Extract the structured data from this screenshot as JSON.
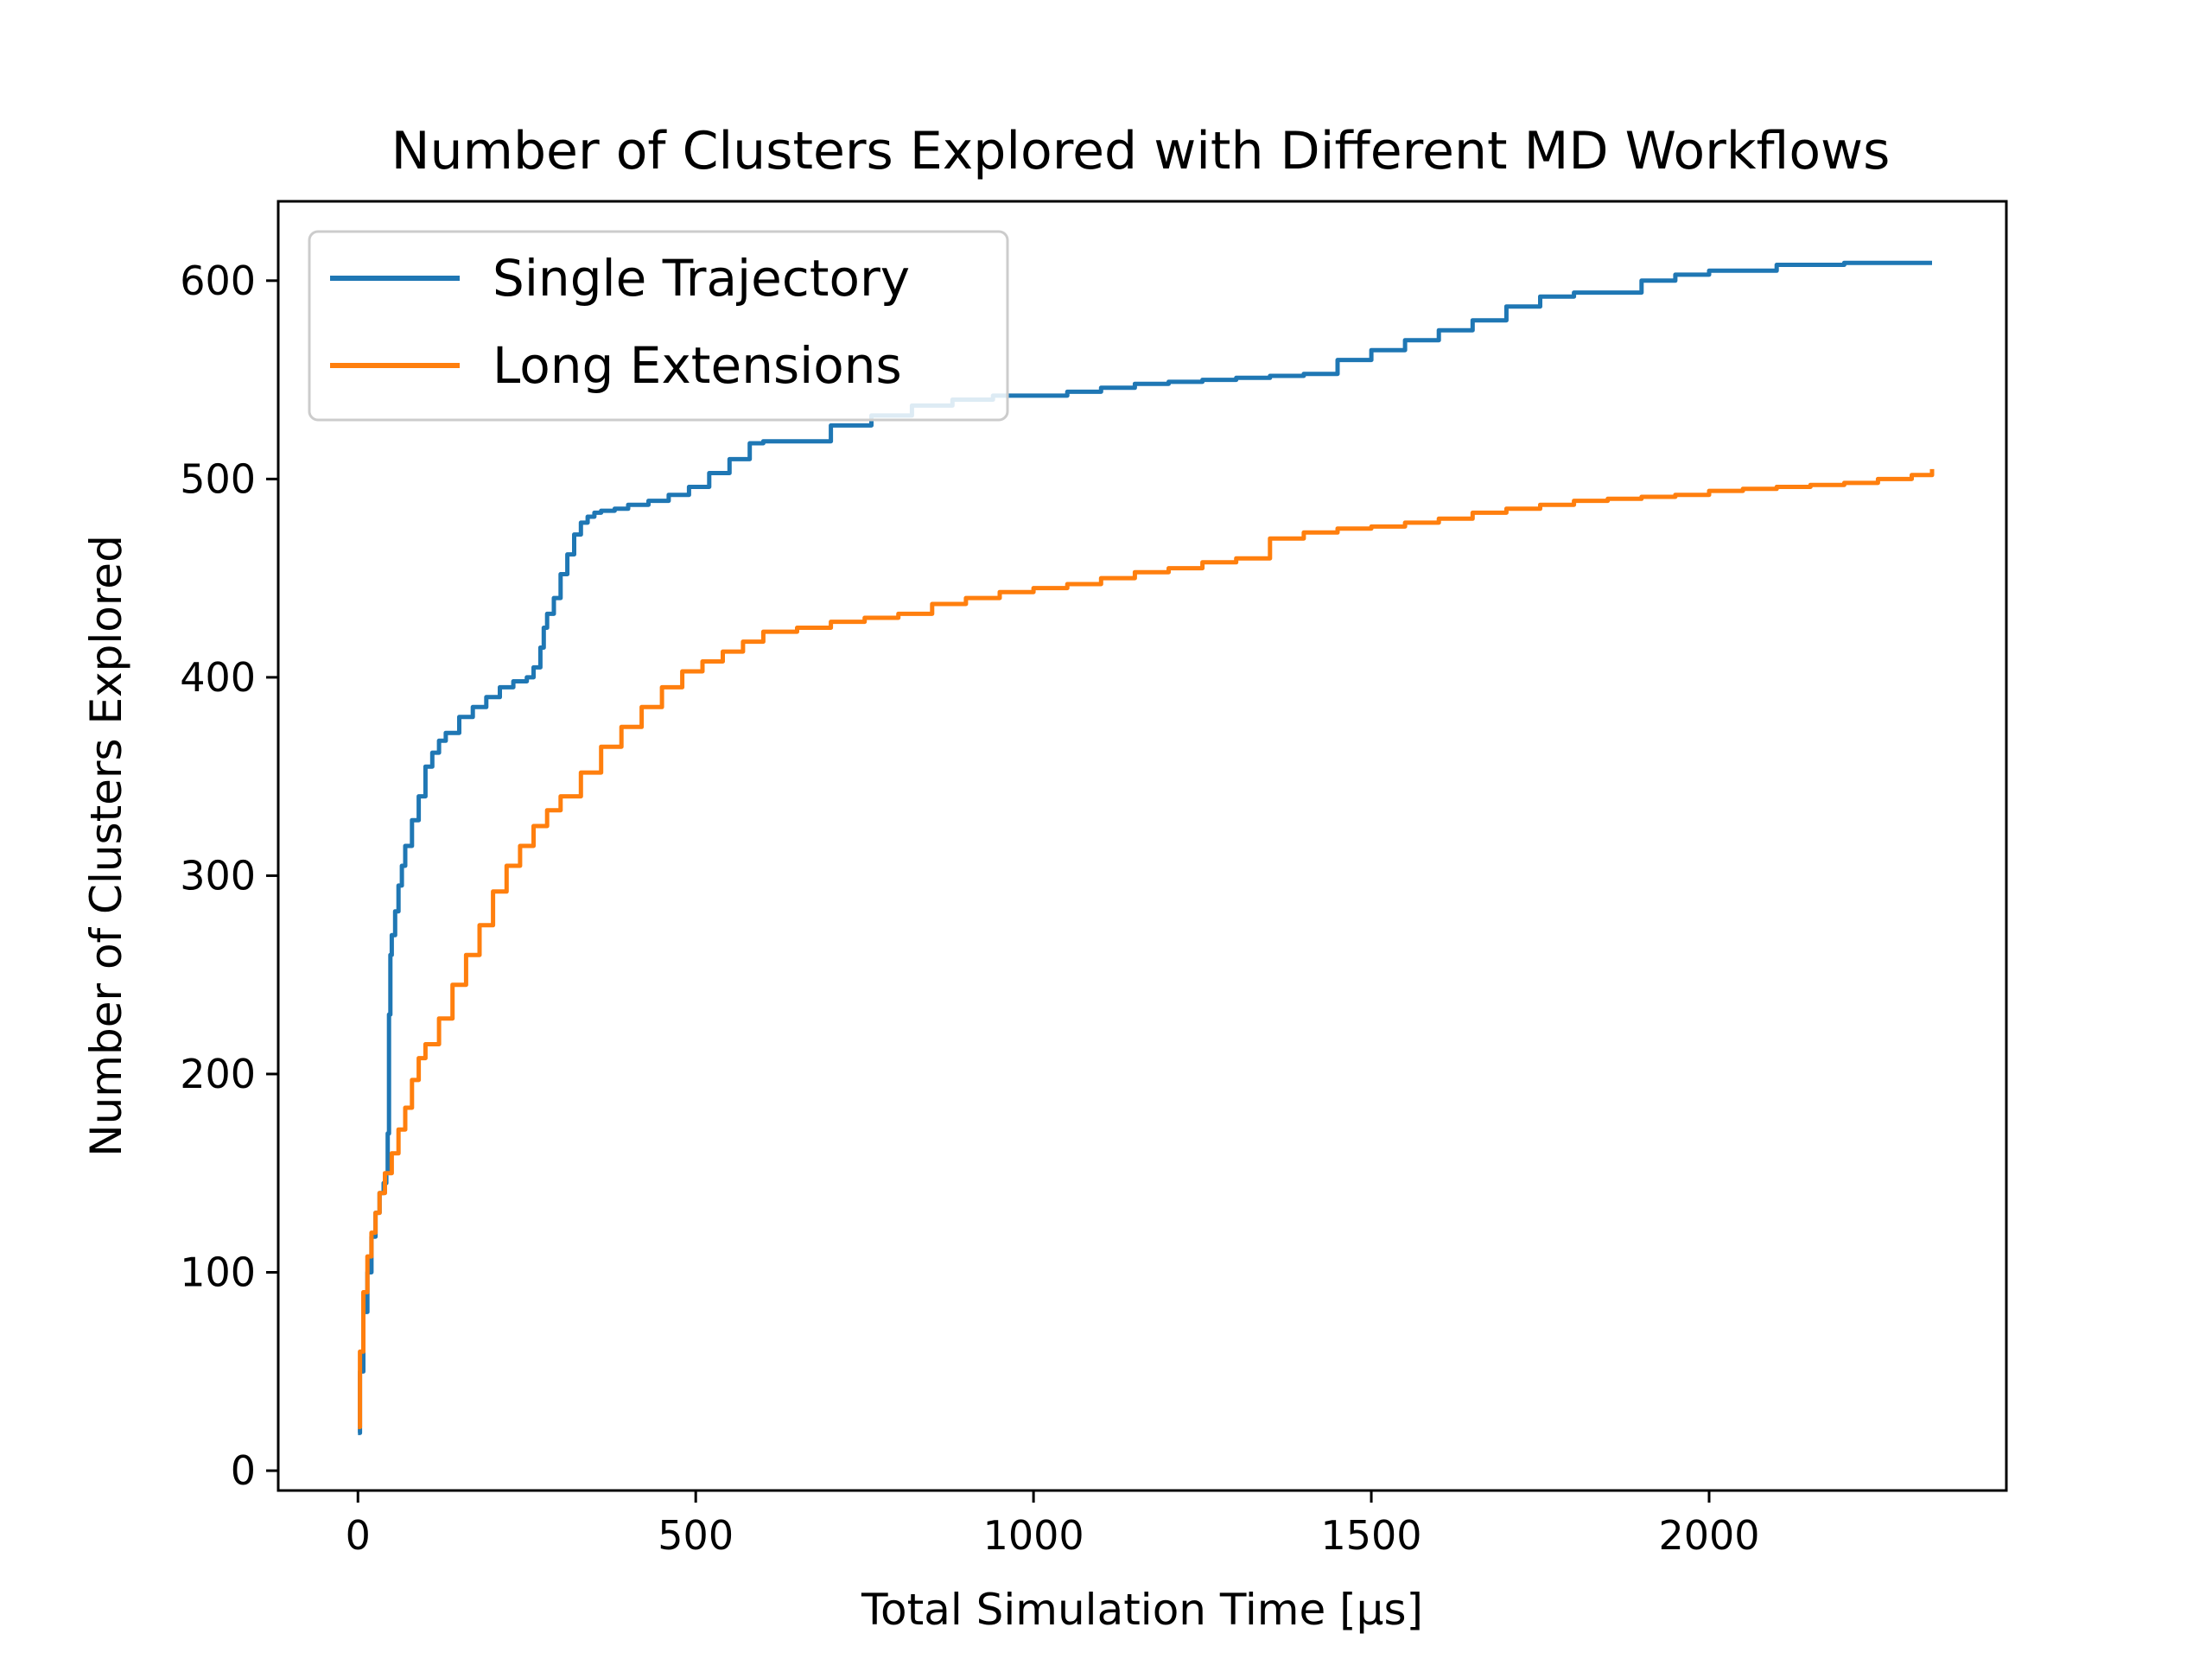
{
  "chart_data": {
    "type": "line",
    "title": "Number of Clusters Explored with Different MD Workflows",
    "xlabel": "Total Simulation Time [μs]",
    "ylabel": "Number of Clusters Explored",
    "xlim": [
      -118,
      2440
    ],
    "ylim": [
      -10,
      640
    ],
    "xticks": [
      0,
      500,
      1000,
      1500,
      2000
    ],
    "yticks": [
      0,
      100,
      200,
      300,
      400,
      500,
      600
    ],
    "grid": false,
    "legend_placement": "top-left",
    "series": [
      {
        "name": "Single Trajectory",
        "color": "#1f77b4",
        "x": [
          0,
          3,
          8,
          14,
          20,
          26,
          32,
          38,
          42,
          44,
          46,
          48,
          50,
          55,
          60,
          65,
          70,
          80,
          90,
          100,
          110,
          120,
          130,
          150,
          170,
          190,
          210,
          230,
          250,
          260,
          270,
          275,
          280,
          290,
          300,
          310,
          320,
          330,
          340,
          350,
          360,
          380,
          400,
          430,
          460,
          490,
          520,
          550,
          580,
          600,
          640,
          700,
          760,
          820,
          880,
          940,
          1000,
          1050,
          1100,
          1150,
          1200,
          1250,
          1300,
          1350,
          1400,
          1450,
          1500,
          1550,
          1600,
          1650,
          1700,
          1750,
          1800,
          1850,
          1880,
          1900,
          1950,
          2000,
          2100,
          2200,
          2330
        ],
        "y": [
          19,
          50,
          80,
          100,
          118,
          130,
          140,
          145,
          150,
          170,
          230,
          260,
          270,
          282,
          295,
          305,
          315,
          328,
          340,
          355,
          362,
          368,
          372,
          380,
          385,
          390,
          395,
          398,
          400,
          405,
          415,
          425,
          432,
          440,
          452,
          462,
          472,
          478,
          481,
          483,
          484,
          485,
          487,
          489,
          492,
          496,
          503,
          510,
          518,
          519,
          519,
          527,
          532,
          537,
          540,
          542,
          542,
          544,
          546,
          548,
          549,
          550,
          551,
          552,
          553,
          560,
          565,
          570,
          575,
          580,
          587,
          592,
          594,
          594,
          594,
          600,
          603,
          605,
          608,
          609,
          609
        ]
      },
      {
        "name": "Long Extensions",
        "color": "#ff7f0e",
        "x": [
          0,
          3,
          8,
          14,
          20,
          26,
          32,
          40,
          50,
          60,
          70,
          80,
          90,
          100,
          120,
          140,
          160,
          180,
          200,
          220,
          240,
          260,
          280,
          300,
          330,
          360,
          390,
          420,
          450,
          480,
          510,
          540,
          570,
          600,
          650,
          700,
          750,
          800,
          850,
          900,
          950,
          1000,
          1050,
          1100,
          1150,
          1200,
          1250,
          1300,
          1350,
          1400,
          1450,
          1500,
          1550,
          1600,
          1650,
          1700,
          1750,
          1800,
          1850,
          1900,
          1950,
          2000,
          2050,
          2100,
          2150,
          2200,
          2250,
          2300,
          2330
        ],
        "y": [
          22,
          60,
          90,
          108,
          120,
          130,
          140,
          150,
          160,
          172,
          183,
          197,
          208,
          215,
          228,
          245,
          260,
          275,
          292,
          305,
          315,
          325,
          333,
          340,
          352,
          365,
          375,
          385,
          395,
          403,
          408,
          413,
          418,
          423,
          425,
          428,
          430,
          432,
          437,
          440,
          443,
          445,
          447,
          450,
          453,
          455,
          458,
          460,
          470,
          473,
          475,
          476,
          478,
          480,
          483,
          485,
          487,
          489,
          490,
          491,
          492,
          494,
          495,
          496,
          497,
          498,
          500,
          502,
          505
        ]
      }
    ]
  }
}
